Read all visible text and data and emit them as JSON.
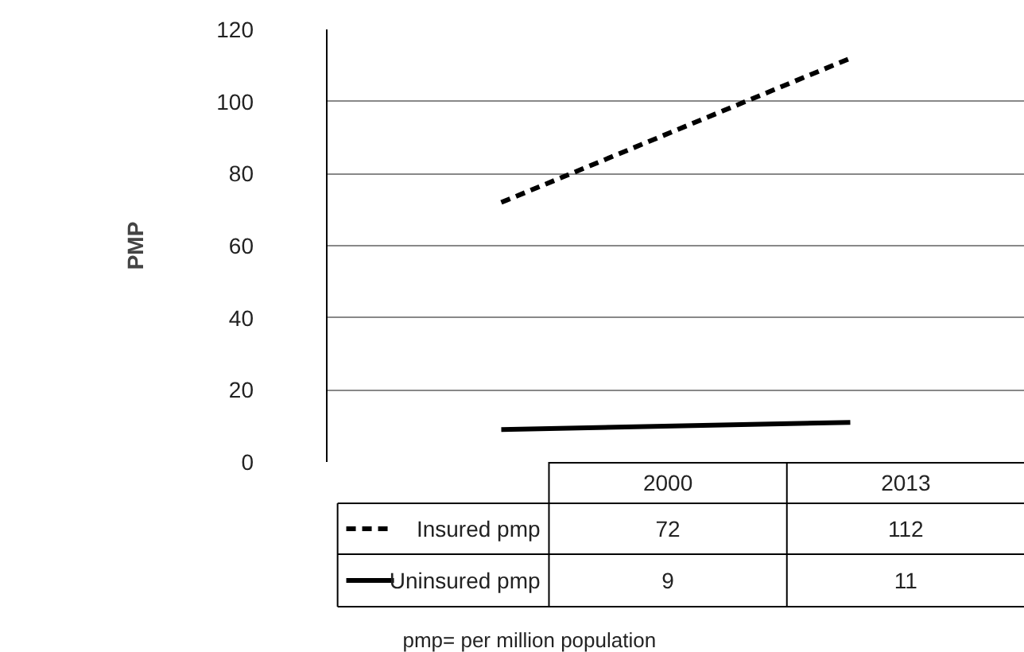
{
  "chart_data": {
    "type": "line",
    "categories": [
      "2000",
      "2013"
    ],
    "series": [
      {
        "name": "Insured pmp",
        "color": "#000000",
        "values": [
          72,
          112
        ],
        "line_style": "dashed"
      },
      {
        "name": "Uninsured pmp",
        "color": "#000000",
        "values": [
          9,
          11
        ],
        "line_style": "solid"
      }
    ],
    "ylabel": "PMP",
    "ylim": [
      0,
      120
    ],
    "yticks": [
      0,
      20,
      40,
      60,
      80,
      100,
      120
    ],
    "grid": "y",
    "data_labels": true,
    "legend": "bottom",
    "annotations": [
      "pmp= per million population"
    ]
  }
}
